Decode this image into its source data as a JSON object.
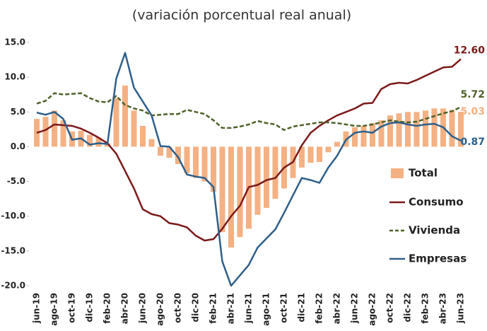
{
  "chart_data": {
    "type": "bar",
    "title": "(variación porcentual real anual)",
    "categories": [
      "jun-19",
      null,
      "ago-19",
      null,
      "oct-19",
      null,
      "dic-19",
      null,
      "feb-20",
      null,
      "abr-20",
      null,
      "jun-20",
      null,
      "ago-20",
      null,
      "oct-20",
      null,
      "dic-20",
      null,
      "feb-21",
      null,
      "abr-21",
      null,
      "jun-21",
      null,
      "ago-21",
      null,
      "oct-21",
      null,
      "dic-21",
      null,
      "feb-22",
      null,
      "abr-22",
      null,
      "jun-22",
      null,
      "ago-22",
      null,
      "oct-22",
      null,
      "dic-22",
      null,
      "feb-23",
      null,
      "abr-23",
      null,
      "jun-23"
    ],
    "series": [
      {
        "name": "Total",
        "type": "bar",
        "color": "#f4b183",
        "values": [
          4.0,
          4.3,
          5.2,
          3.8,
          2.2,
          2.3,
          1.7,
          1.3,
          0.5,
          7.0,
          8.8,
          5.2,
          3.0,
          1.1,
          -1.3,
          -1.6,
          -2.5,
          -3.8,
          -4.5,
          -5.0,
          -6.5,
          -12.3,
          -14.5,
          -13.0,
          -11.8,
          -9.8,
          -8.8,
          -7.5,
          -6.0,
          -4.5,
          -3.0,
          -2.3,
          -2.2,
          -0.8,
          0.7,
          2.2,
          2.8,
          3.0,
          3.4,
          3.8,
          4.5,
          4.8,
          5.0,
          5.0,
          5.2,
          5.5,
          5.5,
          5.3,
          5.03
        ],
        "value_labels": [
          null,
          null,
          null,
          null,
          null,
          null,
          null,
          null,
          null,
          null,
          null,
          null,
          null,
          null,
          null,
          null,
          null,
          null,
          null,
          null,
          null,
          null,
          null,
          null,
          null,
          null,
          null,
          null,
          null,
          null,
          null,
          null,
          null,
          null,
          null,
          null,
          null,
          null,
          null,
          null,
          null,
          null,
          null,
          null,
          null,
          null,
          null,
          null,
          "5.03"
        ]
      },
      {
        "name": "Consumo",
        "type": "line",
        "color": "#7b1a1a",
        "dash": false,
        "values": [
          2.0,
          2.4,
          3.2,
          3.1,
          3.0,
          2.6,
          2.0,
          1.3,
          0.5,
          -1.0,
          -3.5,
          -6.0,
          -9.0,
          -9.7,
          -10.0,
          -11.0,
          -11.2,
          -11.6,
          -12.8,
          -13.5,
          -13.3,
          -11.8,
          -10.0,
          -8.5,
          -5.8,
          -5.5,
          -4.8,
          -4.5,
          -3.0,
          -2.2,
          0.2,
          2.0,
          3.0,
          3.8,
          4.5,
          5.0,
          5.5,
          6.2,
          6.3,
          8.3,
          9.0,
          9.2,
          9.1,
          9.6,
          10.2,
          10.8,
          11.4,
          11.5,
          12.6
        ],
        "value_labels": [
          null,
          null,
          null,
          null,
          null,
          null,
          null,
          null,
          null,
          null,
          null,
          null,
          null,
          null,
          null,
          null,
          null,
          null,
          null,
          null,
          null,
          null,
          null,
          null,
          null,
          null,
          null,
          null,
          null,
          null,
          null,
          null,
          null,
          null,
          null,
          null,
          null,
          null,
          null,
          null,
          null,
          null,
          null,
          null,
          null,
          null,
          null,
          null,
          "12.60"
        ]
      },
      {
        "name": "Vivienda",
        "type": "line",
        "color": "#4f6228",
        "dash": true,
        "values": [
          6.2,
          6.6,
          7.7,
          7.5,
          7.6,
          7.7,
          7.0,
          6.5,
          6.4,
          7.3,
          6.0,
          5.5,
          5.2,
          4.5,
          4.6,
          4.7,
          4.7,
          5.3,
          5.0,
          4.7,
          3.8,
          2.7,
          2.7,
          2.9,
          3.2,
          3.7,
          3.4,
          3.2,
          2.4,
          2.9,
          3.1,
          3.3,
          3.5,
          3.5,
          3.4,
          3.2,
          3.0,
          3.0,
          3.2,
          3.5,
          3.8,
          3.6,
          3.5,
          3.6,
          4.0,
          4.4,
          4.8,
          5.1,
          5.72
        ],
        "value_labels": [
          null,
          null,
          null,
          null,
          null,
          null,
          null,
          null,
          null,
          null,
          null,
          null,
          null,
          null,
          null,
          null,
          null,
          null,
          null,
          null,
          null,
          null,
          null,
          null,
          null,
          null,
          null,
          null,
          null,
          null,
          null,
          null,
          null,
          null,
          null,
          null,
          null,
          null,
          null,
          null,
          null,
          null,
          null,
          null,
          null,
          null,
          null,
          null,
          "5.72"
        ]
      },
      {
        "name": "Empresas",
        "type": "line",
        "color": "#2e5f8a",
        "dash": false,
        "values": [
          4.9,
          4.6,
          5.0,
          4.0,
          1.0,
          1.2,
          0.3,
          0.5,
          0.4,
          9.8,
          13.5,
          8.5,
          6.5,
          4.5,
          0.1,
          0.0,
          -1.5,
          -4.0,
          -4.3,
          -4.5,
          -5.8,
          -16.5,
          -20.0,
          -18.5,
          -17.0,
          -14.5,
          -13.2,
          -11.9,
          -9.5,
          -7.0,
          -4.5,
          -4.8,
          -5.2,
          -3.0,
          -1.3,
          1.0,
          2.0,
          2.2,
          2.0,
          2.9,
          3.4,
          3.5,
          3.2,
          3.0,
          3.2,
          3.3,
          2.8,
          1.5,
          0.87
        ],
        "value_labels": [
          null,
          null,
          null,
          null,
          null,
          null,
          null,
          null,
          null,
          null,
          null,
          null,
          null,
          null,
          null,
          null,
          null,
          null,
          null,
          null,
          null,
          null,
          null,
          null,
          null,
          null,
          null,
          null,
          null,
          null,
          null,
          null,
          null,
          null,
          null,
          null,
          null,
          null,
          null,
          null,
          null,
          null,
          null,
          null,
          null,
          null,
          null,
          null,
          "0.87"
        ]
      }
    ],
    "ylim": [
      -20,
      15
    ],
    "yticks": [
      {
        "value": -20,
        "label": "-20.0"
      },
      {
        "value": -15,
        "label": "-15.0"
      },
      {
        "value": -10,
        "label": "-10.0"
      },
      {
        "value": -5,
        "label": "-5.0"
      },
      {
        "value": 0,
        "label": "0.0"
      },
      {
        "value": 5,
        "label": "5.0"
      },
      {
        "value": 10,
        "label": "10.0"
      },
      {
        "value": 15,
        "label": "15.0"
      }
    ],
    "legend": "right"
  }
}
